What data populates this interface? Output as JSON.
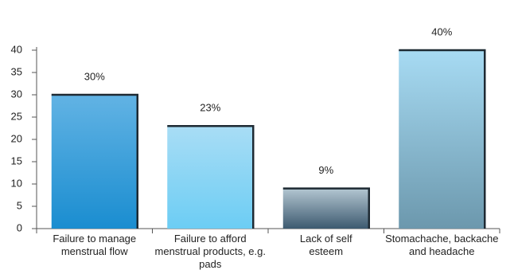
{
  "chart_data": {
    "type": "bar",
    "categories": [
      "Failure to manage menstrual flow",
      "Failure to afford menstrual products, e.g. pads",
      "Lack of self esteem",
      "Stomachache, backache and headache"
    ],
    "values": [
      30,
      23,
      9,
      40
    ],
    "value_labels": [
      "30%",
      "23%",
      "9%",
      "40%"
    ],
    "colors": [
      [
        "#62b3e4",
        "#1a8dd0"
      ],
      [
        "#a9ddf5",
        "#6ccdf4"
      ],
      [
        "#b3c6d1",
        "#3d5a70"
      ],
      [
        "#a7dbf3",
        "#6c98ad"
      ]
    ],
    "ylim": [
      0,
      40
    ],
    "yticks": [
      0,
      5,
      10,
      15,
      20,
      25,
      30,
      35,
      40
    ],
    "grid": false
  }
}
